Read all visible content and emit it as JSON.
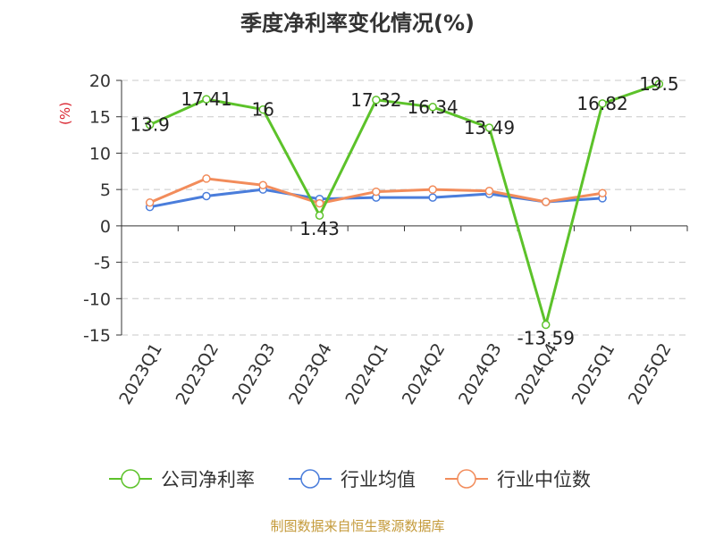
{
  "page": {
    "source_text": "制图数据来自恒生聚源数据库"
  },
  "colors": {
    "net_margin": "#5cc22a",
    "industry_avg": "#4a7ddb",
    "industry_median": "#f28c5b",
    "ylabel": "#d9232e",
    "source": "#c49a3a"
  },
  "chart_data": {
    "type": "line",
    "title": "季度净利率变化情况(%)",
    "xlabel": "",
    "ylabel": "(%)",
    "categories": [
      "2023Q1",
      "2023Q2",
      "2023Q3",
      "2023Q4",
      "2024Q1",
      "2024Q2",
      "2024Q3",
      "2024Q4",
      "2025Q1",
      "2025Q2"
    ],
    "ylim": [
      -15,
      20
    ],
    "yticks": [
      20,
      15,
      10,
      5,
      0,
      -5,
      -10,
      -15
    ],
    "grid": true,
    "legend_position": "bottom",
    "series": [
      {
        "name": "公司净利率",
        "color_key": "net_margin",
        "values": [
          13.9,
          17.41,
          16,
          1.43,
          17.32,
          16.34,
          13.49,
          -13.59,
          16.82,
          19.5
        ],
        "labels": [
          "13.9",
          "17.41",
          "16",
          "1.43",
          "17.32",
          "16.34",
          "13.49",
          "-13.59",
          "16.82",
          "19.5"
        ]
      },
      {
        "name": "行业均值",
        "color_key": "industry_avg",
        "values": [
          2.6,
          4.1,
          5.0,
          3.7,
          3.9,
          3.9,
          4.4,
          3.3,
          3.8,
          null
        ]
      },
      {
        "name": "行业中位数",
        "color_key": "industry_median",
        "values": [
          3.2,
          6.5,
          5.6,
          3.1,
          4.7,
          5.0,
          4.8,
          3.3,
          4.5,
          null
        ]
      }
    ]
  }
}
